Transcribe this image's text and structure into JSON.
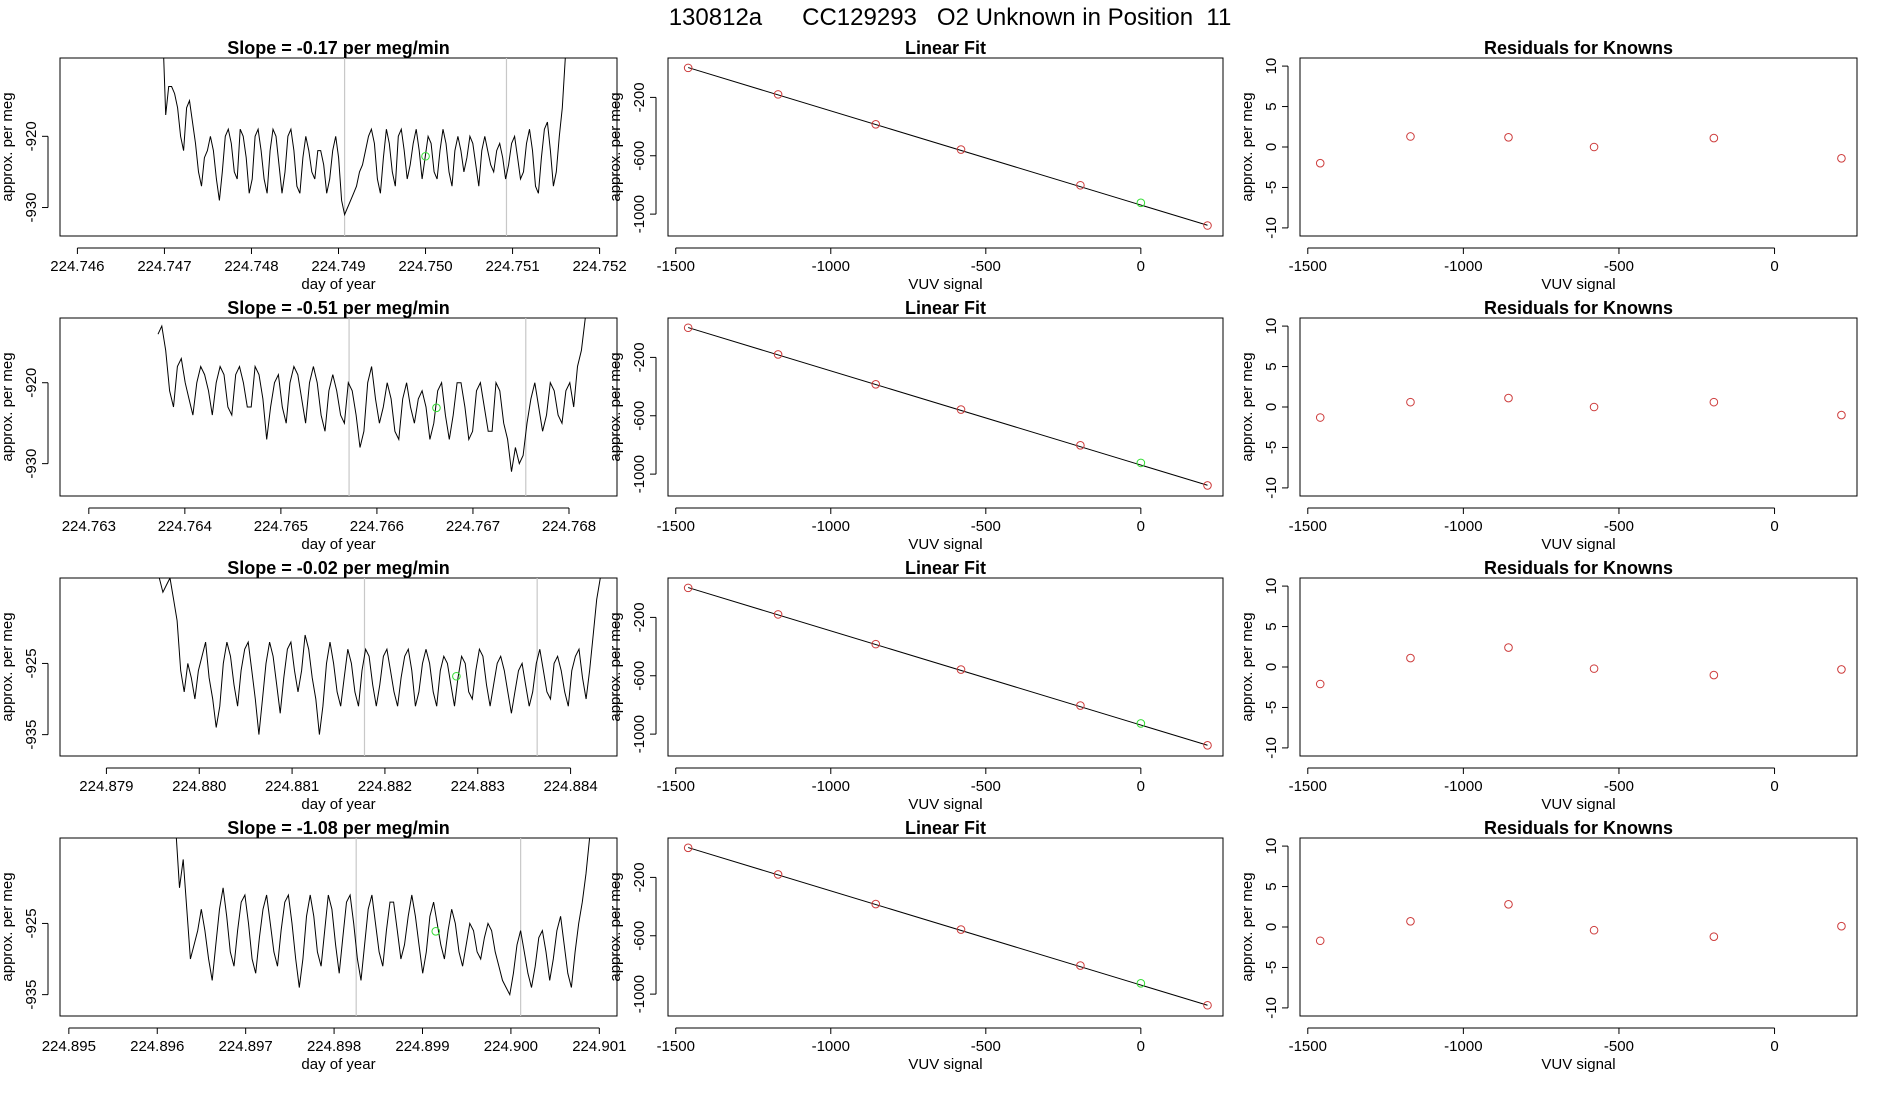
{
  "figure": {
    "title": "130812a      CC129293   O2 Unknown in Position  11"
  },
  "style": {
    "line_color": "#000000",
    "known_point_color": "#cd3b3b",
    "unknown_point_color": "#33dd33",
    "marker_line_color": "#c8c8c8"
  },
  "chart_data": [
    {
      "type": "line",
      "panel": "row1-timeseries",
      "title": "Slope =  -0.17  per meg/min",
      "xlabel": "day of year",
      "ylabel": "approx. per meg",
      "xlim": [
        224.7458,
        224.7522
      ],
      "ylim": [
        -934,
        -909
      ],
      "xticks": [
        "224.746",
        "224.747",
        "224.748",
        "224.749",
        "224.750",
        "224.751",
        "224.752"
      ],
      "xtick_values": [
        224.746,
        224.747,
        224.748,
        224.749,
        224.75,
        224.751,
        224.752
      ],
      "yticks": [
        "-930",
        "-920"
      ],
      "ytick_values": [
        -930,
        -920
      ],
      "vlines": [
        224.74907,
        224.75093
      ],
      "x_start": 224.74698,
      "x_end": 224.75164,
      "y": [
        -905,
        -917,
        -913,
        -913,
        -914,
        -916,
        -920,
        -922,
        -916,
        -915,
        -918,
        -921,
        -925,
        -927,
        -923,
        -922,
        -920,
        -922,
        -926,
        -929,
        -925,
        -920,
        -919,
        -921,
        -925,
        -926,
        -919,
        -920,
        -923,
        -928,
        -926,
        -920,
        -919,
        -922,
        -926,
        -928,
        -922,
        -919,
        -920,
        -924,
        -928,
        -925,
        -920,
        -919,
        -922,
        -927,
        -928,
        -923,
        -920,
        -922,
        -925,
        -926,
        -922,
        -922,
        -924,
        -928,
        -926,
        -922,
        -920,
        -923,
        -929,
        -931,
        -930,
        -929,
        -928,
        -927,
        -925,
        -924,
        -922,
        -920,
        -919,
        -921,
        -926,
        -928,
        -923,
        -919,
        -921,
        -925,
        -927,
        -920,
        -919,
        -922,
        -926,
        -924,
        -921,
        -919,
        -922,
        -926,
        -923,
        -920,
        -921,
        -925,
        -926,
        -922,
        -919,
        -921,
        -925,
        -927,
        -922,
        -920,
        -922,
        -925,
        -923,
        -920,
        -921,
        -924,
        -927,
        -922,
        -920,
        -922,
        -924,
        -925,
        -922,
        -921,
        -923,
        -926,
        -924,
        -921,
        -920,
        -923,
        -926,
        -925,
        -921,
        -919,
        -922,
        -927,
        -928,
        -923,
        -919,
        -918,
        -922,
        -927,
        -925,
        -920,
        -916,
        -909,
        -905
      ],
      "unknown_point": {
        "x": 224.75,
        "y": -922.8
      }
    },
    {
      "type": "scatter",
      "panel": "row1-linear-fit",
      "title": "Linear Fit",
      "xlabel": "VUV signal",
      "ylabel": "approx. per meg",
      "xlim": [
        -1525,
        265
      ],
      "ylim": [
        -1150,
        70
      ],
      "xticks": [
        "-1500",
        "-1000",
        "-500",
        "0"
      ],
      "xtick_values": [
        -1500,
        -1000,
        -500,
        0
      ],
      "yticks": [
        "-1000",
        "-600",
        "-200"
      ],
      "ytick_values": [
        -1000,
        -600,
        -200
      ],
      "line": {
        "x": [
          -1460,
          215
        ],
        "y": [
          4.4,
          -1076.5
        ]
      },
      "knowns": {
        "x": [
          -1460,
          -1170,
          -855,
          -580,
          -195,
          215
        ],
        "y": [
          2.4,
          -179.3,
          -384.3,
          -557.5,
          -802.3,
          -1078
        ]
      },
      "unknown": {
        "x": 0,
        "y": -922.8
      }
    },
    {
      "type": "scatter",
      "panel": "row1-residuals",
      "title": "Residuals for Knowns",
      "xlabel": "VUV signal",
      "ylabel": "approx. per meg",
      "xlim": [
        -1525,
        265
      ],
      "ylim": [
        -11,
        11
      ],
      "xticks": [
        "-1500",
        "-1000",
        "-500",
        "0"
      ],
      "xtick_values": [
        -1500,
        -1000,
        -500,
        0
      ],
      "yticks": [
        "-10",
        "-5",
        "0",
        "5",
        "10"
      ],
      "ytick_values": [
        -10,
        -5,
        0,
        5,
        10
      ],
      "knowns": {
        "x": [
          -1460,
          -1170,
          -855,
          -580,
          -195,
          215
        ],
        "y": [
          -2.0,
          1.3,
          1.2,
          0.0,
          1.1,
          -1.4
        ]
      }
    },
    {
      "type": "line",
      "panel": "row2-timeseries",
      "title": "Slope =  -0.51  per meg/min",
      "xlabel": "day of year",
      "ylabel": "approx. per meg",
      "xlim": [
        224.7627,
        224.7685
      ],
      "ylim": [
        -934,
        -912
      ],
      "xticks": [
        "224.763",
        "224.764",
        "224.765",
        "224.766",
        "224.767",
        "224.768"
      ],
      "xtick_values": [
        224.763,
        224.764,
        224.765,
        224.766,
        224.767,
        224.768
      ],
      "yticks": [
        "-930",
        "-920"
      ],
      "ytick_values": [
        -930,
        -920
      ],
      "vlines": [
        224.76571,
        224.76755
      ],
      "x_start": 224.76372,
      "x_end": 224.76817,
      "y": [
        -914,
        -913,
        -916,
        -921,
        -923,
        -918,
        -917,
        -920,
        -922,
        -924,
        -920,
        -918,
        -919,
        -921,
        -924,
        -920,
        -918,
        -919,
        -923,
        -924,
        -919,
        -918,
        -920,
        -923,
        -923,
        -918,
        -919,
        -922,
        -927,
        -923,
        -920,
        -919,
        -923,
        -925,
        -920,
        -918,
        -919,
        -922,
        -925,
        -920,
        -918,
        -920,
        -924,
        -926,
        -921,
        -919,
        -921,
        -924,
        -925,
        -920,
        -921,
        -924,
        -928,
        -926,
        -920,
        -918,
        -922,
        -925,
        -923,
        -920,
        -922,
        -926,
        -927,
        -922,
        -920,
        -923,
        -925,
        -922,
        -921,
        -923,
        -927,
        -925,
        -921,
        -920,
        -924,
        -927,
        -924,
        -920,
        -920,
        -923,
        -927,
        -926,
        -921,
        -920,
        -923,
        -926,
        -926,
        -920,
        -921,
        -925,
        -927,
        -931,
        -928,
        -930,
        -929,
        -925,
        -922,
        -920,
        -923,
        -926,
        -924,
        -920,
        -921,
        -924,
        -925,
        -921,
        -920,
        -923,
        -918,
        -916,
        -912
      ],
      "unknown_point": {
        "x": 224.76662,
        "y": -923.1
      }
    },
    {
      "type": "scatter",
      "panel": "row2-linear-fit",
      "title": "Linear Fit",
      "xlabel": "VUV signal",
      "ylabel": "approx. per meg",
      "xlim": [
        -1525,
        265
      ],
      "ylim": [
        -1150,
        70
      ],
      "xticks": [
        "-1500",
        "-1000",
        "-500",
        "0"
      ],
      "xtick_values": [
        -1500,
        -1000,
        -500,
        0
      ],
      "yticks": [
        "-1000",
        "-600",
        "-200"
      ],
      "ytick_values": [
        -1000,
        -600,
        -200
      ],
      "line": {
        "x": [
          -1460,
          215
        ],
        "y": [
          4.4,
          -1076.5
        ]
      },
      "knowns": {
        "x": [
          -1460,
          -1170,
          -855,
          -580,
          -195,
          215
        ],
        "y": [
          3.1,
          -179.9,
          -384.4,
          -557.5,
          -802.8,
          -1077.5
        ]
      },
      "unknown": {
        "x": 0,
        "y": -923.1
      }
    },
    {
      "type": "scatter",
      "panel": "row2-residuals",
      "title": "Residuals for Knowns",
      "xlabel": "VUV signal",
      "ylabel": "approx. per meg",
      "xlim": [
        -1525,
        265
      ],
      "ylim": [
        -11,
        11
      ],
      "xticks": [
        "-1500",
        "-1000",
        "-500",
        "0"
      ],
      "xtick_values": [
        -1500,
        -1000,
        -500,
        0
      ],
      "yticks": [
        "-10",
        "-5",
        "0",
        "5",
        "10"
      ],
      "ytick_values": [
        -10,
        -5,
        0,
        5,
        10
      ],
      "knowns": {
        "x": [
          -1460,
          -1170,
          -855,
          -580,
          -195,
          215
        ],
        "y": [
          -1.3,
          0.6,
          1.1,
          0.0,
          0.6,
          -1.0
        ]
      }
    },
    {
      "type": "line",
      "panel": "row3-timeseries",
      "title": "Slope =  -0.02  per meg/min",
      "xlabel": "day of year",
      "ylabel": "approx. per meg",
      "xlim": [
        224.8785,
        224.8845
      ],
      "ylim": [
        -938,
        -913
      ],
      "xticks": [
        "224.879",
        "224.880",
        "224.881",
        "224.882",
        "224.883",
        "224.884"
      ],
      "xtick_values": [
        224.879,
        224.88,
        224.881,
        224.882,
        224.883,
        224.884
      ],
      "yticks": [
        "-935",
        "-925"
      ],
      "ytick_values": [
        -935,
        -925
      ],
      "vlines": [
        224.88178,
        224.88364
      ],
      "x_start": 224.87957,
      "x_end": 224.88432,
      "y": [
        -913,
        -915,
        -914,
        -913,
        -916,
        -919,
        -926,
        -929,
        -925,
        -927,
        -930,
        -926,
        -924,
        -922,
        -927,
        -930,
        -934,
        -931,
        -925,
        -922,
        -924,
        -928,
        -931,
        -926,
        -923,
        -922,
        -926,
        -930,
        -935,
        -930,
        -925,
        -922,
        -924,
        -928,
        -932,
        -927,
        -923,
        -922,
        -926,
        -929,
        -926,
        -921,
        -923,
        -927,
        -930,
        -935,
        -931,
        -925,
        -922,
        -925,
        -929,
        -931,
        -927,
        -923,
        -925,
        -929,
        -931,
        -926,
        -923,
        -924,
        -928,
        -931,
        -928,
        -924,
        -923,
        -926,
        -929,
        -931,
        -927,
        -924,
        -923,
        -926,
        -931,
        -929,
        -925,
        -923,
        -925,
        -929,
        -931,
        -926,
        -924,
        -925,
        -928,
        -931,
        -927,
        -924,
        -925,
        -929,
        -930,
        -926,
        -923,
        -924,
        -928,
        -931,
        -928,
        -925,
        -924,
        -926,
        -929,
        -932,
        -929,
        -926,
        -925,
        -928,
        -931,
        -929,
        -925,
        -923,
        -926,
        -929,
        -930,
        -925,
        -924,
        -926,
        -929,
        -931,
        -926,
        -924,
        -923,
        -927,
        -930,
        -926,
        -921,
        -916,
        -913
      ],
      "unknown_point": {
        "x": 224.88277,
        "y": -926.8
      }
    },
    {
      "type": "scatter",
      "panel": "row3-linear-fit",
      "title": "Linear Fit",
      "xlabel": "VUV signal",
      "ylabel": "approx. per meg",
      "xlim": [
        -1525,
        265
      ],
      "ylim": [
        -1150,
        70
      ],
      "xticks": [
        "-1500",
        "-1000",
        "-500",
        "0"
      ],
      "xtick_values": [
        -1500,
        -1000,
        -500,
        0
      ],
      "yticks": [
        "-1000",
        "-600",
        "-200"
      ],
      "ytick_values": [
        -1000,
        -600,
        -200
      ],
      "line": {
        "x": [
          -1460,
          215
        ],
        "y": [
          4.4,
          -1076.5
        ]
      },
      "knowns": {
        "x": [
          -1460,
          -1170,
          -855,
          -580,
          -195,
          215
        ],
        "y": [
          2.3,
          -179.4,
          -383.3,
          -557.7,
          -804.3,
          -1076.8
        ]
      },
      "unknown": {
        "x": 0,
        "y": -926.8
      }
    },
    {
      "type": "scatter",
      "panel": "row3-residuals",
      "title": "Residuals for Knowns",
      "xlabel": "VUV signal",
      "ylabel": "approx. per meg",
      "xlim": [
        -1525,
        265
      ],
      "ylim": [
        -11,
        11
      ],
      "xticks": [
        "-1500",
        "-1000",
        "-500",
        "0"
      ],
      "xtick_values": [
        -1500,
        -1000,
        -500,
        0
      ],
      "yticks": [
        "-10",
        "-5",
        "0",
        "5",
        "10"
      ],
      "ytick_values": [
        -10,
        -5,
        0,
        5,
        10
      ],
      "knowns": {
        "x": [
          -1460,
          -1170,
          -855,
          -580,
          -195,
          215
        ],
        "y": [
          -2.1,
          1.1,
          2.4,
          -0.2,
          -1.0,
          -0.3
        ]
      }
    },
    {
      "type": "line",
      "panel": "row4-timeseries",
      "title": "Slope =  -1.08  per meg/min",
      "xlabel": "day of year",
      "ylabel": "approx. per meg",
      "xlim": [
        224.8949,
        224.9012
      ],
      "ylim": [
        -938,
        -913
      ],
      "xticks": [
        "224.895",
        "224.896",
        "224.897",
        "224.898",
        "224.899",
        "224.900",
        "224.901"
      ],
      "xtick_values": [
        224.895,
        224.896,
        224.897,
        224.898,
        224.899,
        224.9,
        224.901
      ],
      "yticks": [
        "-935",
        "-925"
      ],
      "ytick_values": [
        -935,
        -925
      ],
      "vlines": [
        224.89825,
        224.90011
      ],
      "x_start": 224.89617,
      "x_end": 224.90089,
      "y": [
        -913,
        -912,
        -920,
        -916,
        -923,
        -930,
        -928,
        -926,
        -923,
        -926,
        -930,
        -933,
        -928,
        -923,
        -920,
        -924,
        -929,
        -931,
        -926,
        -922,
        -921,
        -925,
        -930,
        -932,
        -927,
        -923,
        -921,
        -925,
        -929,
        -931,
        -926,
        -922,
        -921,
        -925,
        -930,
        -934,
        -930,
        -924,
        -921,
        -924,
        -929,
        -931,
        -926,
        -921,
        -923,
        -928,
        -932,
        -927,
        -922,
        -921,
        -925,
        -930,
        -933,
        -928,
        -923,
        -921,
        -925,
        -929,
        -931,
        -926,
        -922,
        -922,
        -926,
        -930,
        -928,
        -924,
        -921,
        -924,
        -928,
        -932,
        -929,
        -924,
        -922,
        -925,
        -928,
        -930,
        -926,
        -923,
        -925,
        -929,
        -931,
        -928,
        -925,
        -926,
        -929,
        -930,
        -927,
        -925,
        -926,
        -929,
        -931,
        -933,
        -934,
        -935,
        -932,
        -928,
        -926,
        -929,
        -932,
        -934,
        -931,
        -927,
        -926,
        -929,
        -933,
        -930,
        -926,
        -924,
        -928,
        -932,
        -934,
        -929,
        -925,
        -922,
        -918,
        -913
      ],
      "unknown_point": {
        "x": 224.89915,
        "y": -926.1
      }
    },
    {
      "type": "scatter",
      "panel": "row4-linear-fit",
      "title": "Linear Fit",
      "xlabel": "VUV signal",
      "ylabel": "approx. per meg",
      "xlim": [
        -1525,
        265
      ],
      "ylim": [
        -1150,
        70
      ],
      "xticks": [
        "-1500",
        "-1000",
        "-500",
        "0"
      ],
      "xtick_values": [
        -1500,
        -1000,
        -500,
        0
      ],
      "yticks": [
        "-1000",
        "-600",
        "-200"
      ],
      "ytick_values": [
        -1000,
        -600,
        -200
      ],
      "line": {
        "x": [
          -1460,
          215
        ],
        "y": [
          4.4,
          -1076.5
        ]
      },
      "knowns": {
        "x": [
          -1460,
          -1170,
          -855,
          -580,
          -195,
          215
        ],
        "y": [
          2.6,
          -179.8,
          -383.0,
          -557.8,
          -804.5,
          -1076.4
        ]
      },
      "unknown": {
        "x": 0,
        "y": -926.1
      }
    },
    {
      "type": "scatter",
      "panel": "row4-residuals",
      "title": "Residuals for Knowns",
      "xlabel": "VUV signal",
      "ylabel": "approx. per meg",
      "xlim": [
        -1525,
        265
      ],
      "ylim": [
        -11,
        11
      ],
      "xticks": [
        "-1500",
        "-1000",
        "-500",
        "0"
      ],
      "xtick_values": [
        -1500,
        -1000,
        -500,
        0
      ],
      "yticks": [
        "-10",
        "-5",
        "0",
        "5",
        "10"
      ],
      "ytick_values": [
        -10,
        -5,
        0,
        5,
        10
      ],
      "knowns": {
        "x": [
          -1460,
          -1170,
          -855,
          -580,
          -195,
          215
        ],
        "y": [
          -1.7,
          0.7,
          2.8,
          -0.4,
          -1.2,
          0.1
        ]
      }
    }
  ]
}
